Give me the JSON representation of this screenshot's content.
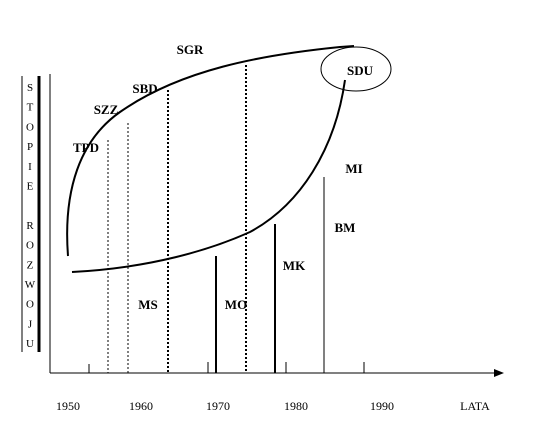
{
  "diagram": {
    "y_axis_label_letters": [
      "S",
      "T",
      "O",
      "P",
      "I",
      "E",
      "",
      "R",
      "O",
      "Z",
      "W",
      "O",
      "J",
      "U"
    ],
    "x_axis_label": "LATA",
    "x_ticks": [
      "1950",
      "1960",
      "1970",
      "1980",
      "1990"
    ],
    "curve_labels": [
      "SGR",
      "SBD",
      "SZZ",
      "TPD",
      "SDU",
      "MI",
      "BM",
      "MK",
      "MO",
      "MS"
    ]
  }
}
